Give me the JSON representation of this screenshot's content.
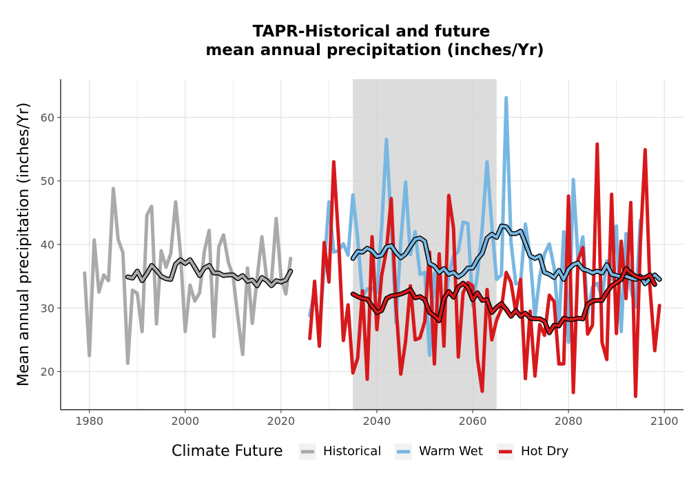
{
  "chart_data": {
    "type": "line",
    "title": [
      "TAPR-Historical and future",
      "mean annual precipitation (inches/Yr)"
    ],
    "xlabel": "",
    "ylabel": "Mean annual precipitation (inches/Yr)",
    "xlim": [
      1974,
      2104
    ],
    "ylim": [
      14,
      66
    ],
    "x_ticks": [
      1980,
      2000,
      2020,
      2040,
      2060,
      2080,
      2100
    ],
    "y_ticks": [
      20,
      30,
      40,
      50,
      60
    ],
    "grid": true,
    "shaded_period": [
      2035,
      2065
    ],
    "legend": {
      "title": "Climate Future",
      "position": "bottom",
      "entries": [
        {
          "label": "Historical",
          "color": "#aaaaaa"
        },
        {
          "label": "Warm Wet",
          "color": "#78b7e2"
        },
        {
          "label": "Hot Dry",
          "color": "#d7191c"
        }
      ]
    },
    "series": [
      {
        "name": "Historical",
        "color": "#aaaaaa",
        "start": 1979,
        "values": [
          35.5,
          22.5,
          40.7,
          32.5,
          35.2,
          34.3,
          48.8,
          40.8,
          38.7,
          21.3,
          32.8,
          32.3,
          26.3,
          44.6,
          46.0,
          27.5,
          39.0,
          36.4,
          38.6,
          46.7,
          38.8,
          26.3,
          33.6,
          31.1,
          32.4,
          38.9,
          42.2,
          25.5,
          39.6,
          41.5,
          37.2,
          35.0,
          28.5,
          22.7,
          36.3,
          27.6,
          34.6,
          41.2,
          34.6,
          34.2,
          44.1,
          34.8,
          32.2,
          37.8
        ]
      },
      {
        "name": "Historical avg",
        "color": "#aaaaaa",
        "smooth": true,
        "start": 1988,
        "values": [
          34.9,
          34.7,
          35.8,
          34.3,
          35.4,
          36.7,
          35.9,
          35.0,
          34.6,
          34.5,
          36.9,
          37.6,
          37.0,
          37.6,
          36.4,
          35.1,
          36.3,
          36.7,
          35.5,
          35.5,
          35.1,
          35.2,
          35.2,
          34.6,
          35.1,
          34.2,
          34.4,
          33.5,
          34.8,
          34.3,
          33.5,
          34.3,
          34.1,
          34.4,
          35.8
        ]
      },
      {
        "name": "Warm Wet",
        "color": "#78b7e2",
        "start": 2026,
        "values": [
          28.8,
          32.7,
          26.3,
          36.3,
          46.7,
          38.8,
          39.0,
          40.1,
          38.3,
          47.8,
          41.0,
          31.8,
          33.0,
          33.1,
          32.4,
          42.6,
          56.5,
          43.2,
          27.7,
          40.5,
          49.8,
          38.4,
          42.0,
          35.3,
          35.6,
          22.6,
          35.5,
          28.4,
          29.0,
          35.2,
          38.2,
          38.9,
          43.5,
          43.3,
          30.4,
          35.4,
          42.6,
          53.0,
          43.0,
          34.5,
          35.2,
          63.1,
          40.3,
          33.8,
          34.0,
          43.2,
          38.1,
          28.5,
          35.0,
          38.5,
          40.1,
          36.4,
          27.0,
          42.0,
          24.6,
          50.2,
          37.5,
          41.2,
          29.0,
          33.3,
          33.9,
          31.6,
          37.4,
          34.5,
          42.9,
          26.3,
          41.7,
          33.0,
          30.1,
          43.8
        ]
      },
      {
        "name": "Warm Wet avg",
        "color": "#78b7e2",
        "smooth": true,
        "start": 2035,
        "values": [
          37.8,
          38.9,
          38.8,
          39.4,
          39.0,
          38.1,
          38.3,
          39.6,
          39.8,
          38.7,
          37.9,
          38.5,
          39.7,
          40.8,
          41.0,
          40.5,
          37.0,
          36.6,
          35.6,
          36.2,
          35.3,
          35.6,
          34.9,
          35.4,
          36.3,
          36.3,
          37.7,
          38.6,
          41.0,
          41.6,
          41.1,
          42.9,
          42.8,
          41.7,
          41.7,
          42.1,
          40.2,
          38.2,
          37.8,
          38.2,
          35.6,
          35.3,
          34.8,
          35.9,
          34.5,
          36.1,
          36.8,
          37.1,
          36.1,
          35.9,
          35.5,
          35.8,
          35.5,
          36.8,
          35.3,
          35.1,
          34.9,
          35.0,
          34.7,
          34.5,
          35.0,
          33.8,
          34.6,
          35.2,
          34.5
        ]
      },
      {
        "name": "Hot Dry",
        "color": "#d7191c",
        "start": 2026,
        "values": [
          25.2,
          34.2,
          24.0,
          40.3,
          34.1,
          53.0,
          41.0,
          24.9,
          30.5,
          19.8,
          22.1,
          32.7,
          18.8,
          41.2,
          26.6,
          35.1,
          39.1,
          47.2,
          30.3,
          19.6,
          24.8,
          33.5,
          25.0,
          25.3,
          27.9,
          38.8,
          21.2,
          38.5,
          24.0,
          47.7,
          42.6,
          22.3,
          32.4,
          34.0,
          33.5,
          22.0,
          16.9,
          32.9,
          25.0,
          28.1,
          29.9,
          35.6,
          34.0,
          29.4,
          34.5,
          18.9,
          29.5,
          19.3,
          27.4,
          25.7,
          32.0,
          31.0,
          21.2,
          21.2,
          47.6,
          16.7,
          37.6,
          39.5,
          25.9,
          27.3,
          55.8,
          24.6,
          21.9,
          47.9,
          26.0,
          40.5,
          31.5,
          46.6,
          16.1,
          40.2,
          54.9,
          33.3,
          23.3,
          30.4
        ]
      },
      {
        "name": "Hot Dry avg",
        "color": "#d7191c",
        "smooth": true,
        "start": 2035,
        "values": [
          32.2,
          31.8,
          31.5,
          31.4,
          30.3,
          29.3,
          29.6,
          31.5,
          31.9,
          32.0,
          32.2,
          32.5,
          32.9,
          31.6,
          31.8,
          31.3,
          29.3,
          28.8,
          28.0,
          31.5,
          32.6,
          31.7,
          33.3,
          33.9,
          33.2,
          31.3,
          32.4,
          31.2,
          31.3,
          29.3,
          30.1,
          30.7,
          29.8,
          28.7,
          29.6,
          28.7,
          29.2,
          28.4,
          28.3,
          28.3,
          27.9,
          26.1,
          27.3,
          27.2,
          28.4,
          28.2,
          28.2,
          28.4,
          28.3,
          30.6,
          31.1,
          31.2,
          31.2,
          32.5,
          33.5,
          34.0,
          34.5,
          36.2,
          35.5,
          35.0,
          34.7,
          34.8,
          35.2,
          33.7
        ]
      }
    ]
  }
}
